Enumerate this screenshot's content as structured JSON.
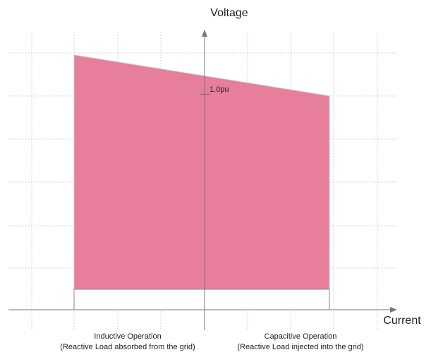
{
  "axes": {
    "y_label": "Voltage",
    "x_label": "Current",
    "reference": "1.0pu"
  },
  "regions": [
    {
      "title": "Inductive Operation",
      "subtitle": "(Reactive Load absorbed from the grid)"
    },
    {
      "title": "Capacitive Operation",
      "subtitle": "(Reactive Load injected into the grid)"
    }
  ]
}
